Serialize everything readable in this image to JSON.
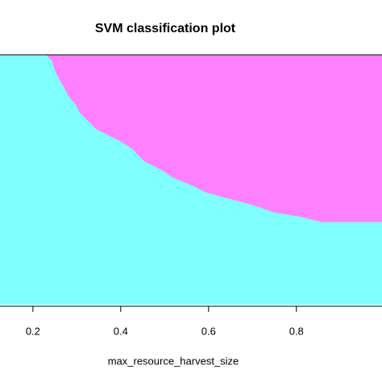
{
  "chart_data": {
    "type": "area",
    "title": "SVM classification plot",
    "x_label": "max_resource_harvest_size",
    "x": [
      0.231,
      0.244,
      0.253,
      0.268,
      0.283,
      0.299,
      0.308,
      0.327,
      0.345,
      0.4,
      0.428,
      0.455,
      0.492,
      0.519,
      0.565,
      0.593,
      0.639,
      0.675,
      0.712,
      0.749,
      0.804,
      0.859,
      0.995
    ],
    "values": [
      1.0,
      0.977,
      0.929,
      0.881,
      0.832,
      0.8,
      0.768,
      0.735,
      0.703,
      0.655,
      0.623,
      0.574,
      0.542,
      0.51,
      0.477,
      0.452,
      0.429,
      0.413,
      0.394,
      0.371,
      0.355,
      0.332,
      0.332
    ],
    "color": "#ff80ff",
    "background_color": "#80ffff",
    "xlim": [
      0.125,
      0.995
    ],
    "ylim": [
      0,
      1
    ],
    "xticks": [
      0.2,
      0.4,
      0.6,
      0.8
    ]
  }
}
